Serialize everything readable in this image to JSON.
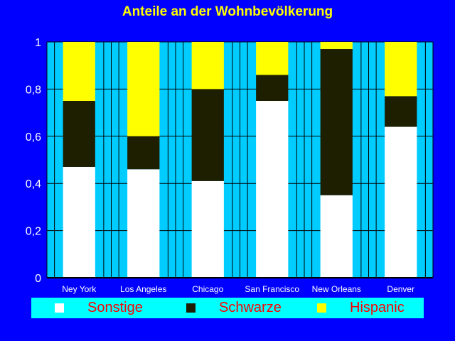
{
  "chart_data": {
    "type": "bar",
    "stacked": true,
    "title": "Anteile an der Wohnbevölkerung",
    "categories": [
      "Ney York",
      "Los Angeles",
      "Chicago",
      "San Francisco",
      "New Orleans",
      "Denver"
    ],
    "series": [
      {
        "name": "Sonstige",
        "color": "#ffffff",
        "values": [
          0.47,
          0.46,
          0.41,
          0.75,
          0.35,
          0.64
        ]
      },
      {
        "name": "Schwarze",
        "color": "#1e1e00",
        "values": [
          0.28,
          0.14,
          0.39,
          0.11,
          0.62,
          0.13
        ]
      },
      {
        "name": "Hispanic",
        "color": "#ffff00",
        "values": [
          0.25,
          0.4,
          0.2,
          0.14,
          0.03,
          0.23
        ]
      }
    ],
    "ylim": [
      0,
      1
    ],
    "yticks": [
      "0",
      "0,2",
      "0,4",
      "0,6",
      "0,8",
      "1"
    ],
    "grid": true,
    "plot_background": "#00ccff",
    "legend_position": "bottom"
  }
}
